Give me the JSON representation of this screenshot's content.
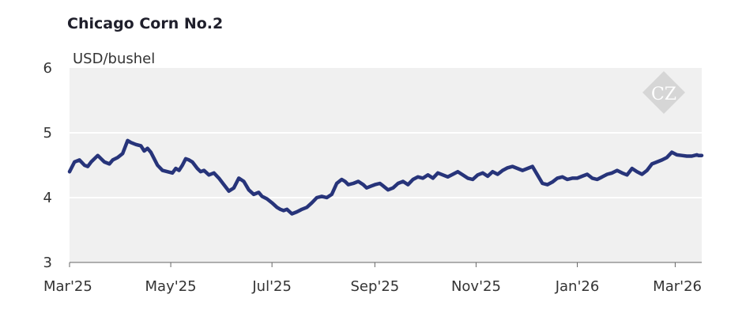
{
  "chart_data": {
    "type": "line",
    "title": "Chicago Corn No.2",
    "ylabel": "USD/bushel",
    "xlabel": "",
    "ylim": [
      3,
      6
    ],
    "yticks": [
      "3",
      "4",
      "5",
      "6"
    ],
    "x_tick_labels": [
      "Mar'25",
      "May'25",
      "Jul'25",
      "Sep'25",
      "Nov'25",
      "Jan'26",
      "Mar'26"
    ],
    "x_tick_dates": [
      "2025-03-01",
      "2025-05-01",
      "2025-07-01",
      "2025-09-01",
      "2025-11-01",
      "2026-01-01",
      "2026-03-01"
    ],
    "xlim": [
      "2025-03-01",
      "2026-03-17"
    ],
    "grid": true,
    "line_color": "#27347a",
    "plot_background": "#f0f0f0",
    "watermark": "CZ",
    "series": [
      {
        "x": [
          "2025-03-01",
          "2025-03-04",
          "2025-03-07",
          "2025-03-10",
          "2025-03-12",
          "2025-03-14",
          "2025-03-18",
          "2025-03-20",
          "2025-03-22",
          "2025-03-25",
          "2025-03-27",
          "2025-03-30",
          "2025-04-02",
          "2025-04-05",
          "2025-04-07",
          "2025-04-10",
          "2025-04-13",
          "2025-04-15",
          "2025-04-17",
          "2025-04-19",
          "2025-04-21",
          "2025-04-23",
          "2025-04-26",
          "2025-04-29",
          "2025-05-02",
          "2025-05-04",
          "2025-05-06",
          "2025-05-08",
          "2025-05-10",
          "2025-05-12",
          "2025-05-14",
          "2025-05-17",
          "2025-05-19",
          "2025-05-21",
          "2025-05-24",
          "2025-05-27",
          "2025-05-30",
          "2025-06-02",
          "2025-06-05",
          "2025-06-08",
          "2025-06-11",
          "2025-06-14",
          "2025-06-17",
          "2025-06-20",
          "2025-06-23",
          "2025-06-25",
          "2025-06-28",
          "2025-07-01",
          "2025-07-04",
          "2025-07-06",
          "2025-07-08",
          "2025-07-10",
          "2025-07-13",
          "2025-07-16",
          "2025-07-19",
          "2025-07-22",
          "2025-07-25",
          "2025-07-28",
          "2025-07-31",
          "2025-08-03",
          "2025-08-06",
          "2025-08-09",
          "2025-08-12",
          "2025-08-14",
          "2025-08-16",
          "2025-08-19",
          "2025-08-22",
          "2025-08-25",
          "2025-08-27",
          "2025-08-30",
          "2025-09-01",
          "2025-09-04",
          "2025-09-06",
          "2025-09-09",
          "2025-09-12",
          "2025-09-15",
          "2025-09-18",
          "2025-09-21",
          "2025-09-24",
          "2025-09-27",
          "2025-09-30",
          "2025-10-03",
          "2025-10-06",
          "2025-10-09",
          "2025-10-12",
          "2025-10-15",
          "2025-10-18",
          "2025-10-21",
          "2025-10-24",
          "2025-10-27",
          "2025-10-30",
          "2025-11-02",
          "2025-11-05",
          "2025-11-08",
          "2025-11-11",
          "2025-11-14",
          "2025-11-17",
          "2025-11-20",
          "2025-11-23",
          "2025-11-26",
          "2025-11-29",
          "2025-12-02",
          "2025-12-05",
          "2025-12-08",
          "2025-12-11",
          "2025-12-14",
          "2025-12-17",
          "2025-12-20",
          "2025-12-23",
          "2025-12-26",
          "2025-12-29",
          "2026-01-01",
          "2026-01-04",
          "2026-01-07",
          "2026-01-10",
          "2026-01-13",
          "2026-01-16",
          "2026-01-19",
          "2026-01-22",
          "2026-01-25",
          "2026-01-28",
          "2026-01-31",
          "2026-02-03",
          "2026-02-06",
          "2026-02-09",
          "2026-02-12",
          "2026-02-15",
          "2026-02-18",
          "2026-02-21",
          "2026-02-24",
          "2026-02-27",
          "2026-03-02",
          "2026-03-05",
          "2026-03-08",
          "2026-03-11",
          "2026-03-14",
          "2026-03-15",
          "2026-03-17"
        ],
        "y": [
          4.4,
          4.55,
          4.58,
          4.5,
          4.48,
          4.55,
          4.65,
          4.6,
          4.55,
          4.52,
          4.58,
          4.62,
          4.68,
          4.88,
          4.85,
          4.82,
          4.8,
          4.72,
          4.76,
          4.7,
          4.6,
          4.5,
          4.42,
          4.4,
          4.38,
          4.45,
          4.42,
          4.5,
          4.6,
          4.58,
          4.55,
          4.45,
          4.4,
          4.42,
          4.35,
          4.38,
          4.3,
          4.2,
          4.1,
          4.15,
          4.3,
          4.25,
          4.12,
          4.05,
          4.08,
          4.02,
          3.98,
          3.92,
          3.85,
          3.82,
          3.8,
          3.82,
          3.75,
          3.78,
          3.82,
          3.85,
          3.92,
          4.0,
          4.02,
          4.0,
          4.05,
          4.22,
          4.28,
          4.25,
          4.2,
          4.22,
          4.25,
          4.2,
          4.15,
          4.18,
          4.2,
          4.22,
          4.18,
          4.12,
          4.15,
          4.22,
          4.25,
          4.2,
          4.28,
          4.32,
          4.3,
          4.35,
          4.3,
          4.38,
          4.35,
          4.32,
          4.36,
          4.4,
          4.35,
          4.3,
          4.28,
          4.35,
          4.38,
          4.33,
          4.4,
          4.36,
          4.42,
          4.46,
          4.48,
          4.45,
          4.42,
          4.45,
          4.48,
          4.35,
          4.22,
          4.2,
          4.24,
          4.3,
          4.32,
          4.28,
          4.3,
          4.3,
          4.33,
          4.36,
          4.3,
          4.28,
          4.32,
          4.36,
          4.38,
          4.42,
          4.38,
          4.35,
          4.45,
          4.4,
          4.36,
          4.42,
          4.52,
          4.55,
          4.58,
          4.62,
          4.7,
          4.66,
          4.65,
          4.64,
          4.64,
          4.66,
          4.65,
          4.65
        ]
      }
    ]
  }
}
